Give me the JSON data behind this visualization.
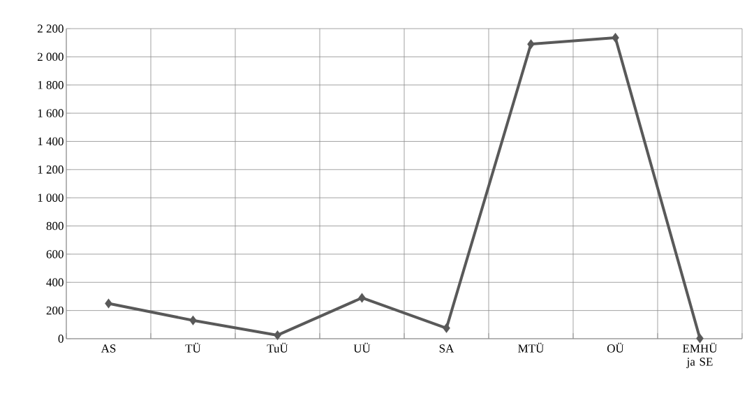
{
  "chart_data": {
    "type": "line",
    "categories": [
      "AS",
      "TÜ",
      "TuÜ",
      "UÜ",
      "SA",
      "MTÜ",
      "OÜ",
      "EMHÜ ja SE"
    ],
    "values": [
      250,
      130,
      25,
      290,
      75,
      2090,
      2135,
      3
    ],
    "color": "#595959",
    "ylim": [
      0,
      2200
    ],
    "yticks": [
      {
        "value": 0,
        "label": "0"
      },
      {
        "value": 200,
        "label": "200"
      },
      {
        "value": 400,
        "label": "400"
      },
      {
        "value": 600,
        "label": "600"
      },
      {
        "value": 800,
        "label": "800"
      },
      {
        "value": 1000,
        "label": "1 000"
      },
      {
        "value": 1200,
        "label": "1 200"
      },
      {
        "value": 1400,
        "label": "1 400"
      },
      {
        "value": 1600,
        "label": "1 600"
      },
      {
        "value": 1800,
        "label": "1 800"
      },
      {
        "value": 2000,
        "label": "2 000"
      },
      {
        "value": 2200,
        "label": "2 200"
      }
    ],
    "grid": true,
    "marker": "diamond",
    "line_style": "solid"
  }
}
